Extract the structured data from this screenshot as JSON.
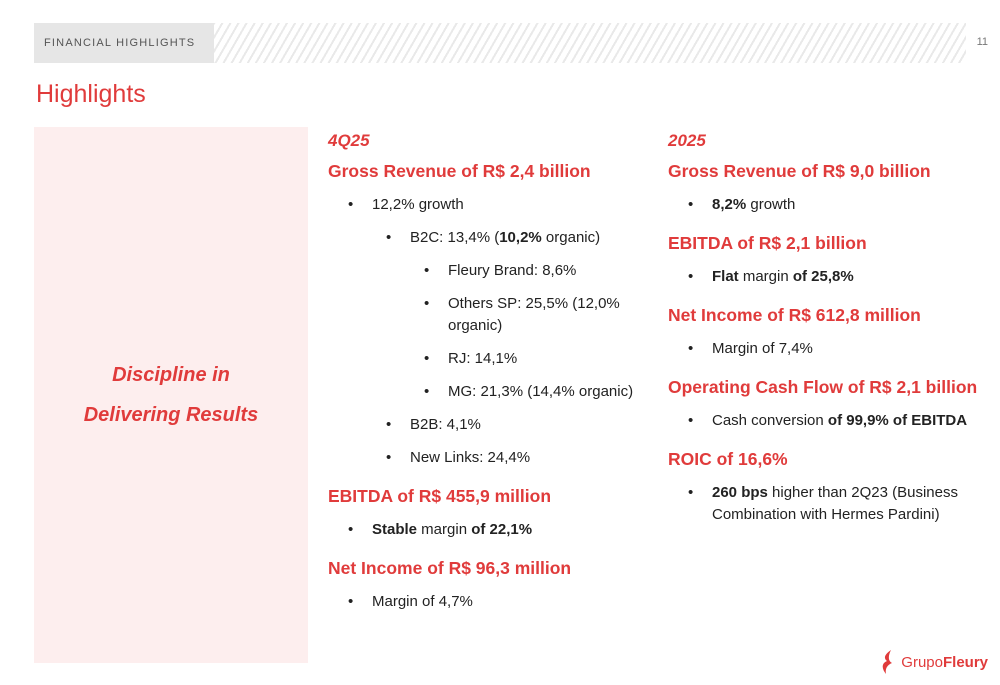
{
  "header": {
    "section": "FINANCIAL HIGHLIGHTS",
    "page_number": "11"
  },
  "title": "Highlights",
  "left_panel": {
    "line1": "Discipline in",
    "line2": "Delivering Results"
  },
  "q4": {
    "period": "4Q25",
    "gross_revenue": "Gross Revenue of R$ 2,4 billion",
    "growth": "12,2% growth",
    "b2c_prefix": "B2C: 13,4% (",
    "b2c_bold": "10,2%",
    "b2c_suffix": " organic)",
    "fleury_brand": "Fleury Brand: 8,6%",
    "others_sp": "Others SP: 25,5% (12,0% organic)",
    "rj": "RJ: 14,1%",
    "mg": "MG: 21,3% (14,4% organic)",
    "b2b": "B2B: 4,1%",
    "new_links": "New Links: 24,4%",
    "ebitda": "EBITDA of R$ 455,9 million",
    "ebitda_b1": "Stable",
    "ebitda_t1": " margin ",
    "ebitda_b2": "of 22,1%",
    "net_income": "Net Income of R$ 96,3 million",
    "net_margin": "Margin of 4,7%"
  },
  "y2025": {
    "period": "2025",
    "gross_revenue": "Gross Revenue of R$ 9,0 billion",
    "growth_bold": "8,2%",
    "growth_text": " growth",
    "ebitda": "EBITDA of R$ 2,1 billion",
    "ebitda_b1": "Flat",
    "ebitda_t1": " margin ",
    "ebitda_b2": "of 25,8%",
    "net_income": "Net Income of R$ 612,8 million",
    "net_margin": "Margin of 7,4%",
    "ocf": "Operating Cash Flow of R$ 2,1 billion",
    "ocf_text": "Cash conversion ",
    "ocf_bold": "of 99,9% of EBITDA",
    "roic": "ROIC of 16,6%",
    "roic_bold": "260 bps",
    "roic_text": " higher than 2Q23 (Business Combination with Hermes Pardini)"
  },
  "logo": {
    "part1": "Grupo",
    "part2": "Fleury"
  },
  "colors": {
    "accent": "#e03b3b",
    "panel_bg": "#fdeeee",
    "tab_bg": "#e6e6e6"
  }
}
